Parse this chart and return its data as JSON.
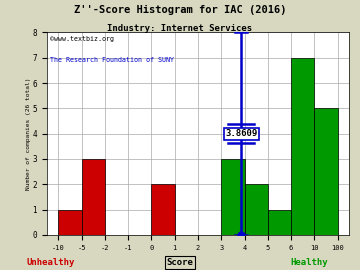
{
  "title": "Z''-Score Histogram for IAC (2016)",
  "subtitle": "Industry: Internet Services",
  "watermark1": "©www.textbiz.org",
  "watermark2": "The Research Foundation of SUNY",
  "xlabel": "Score",
  "ylabel": "Number of companies (26 total)",
  "bin_edges": [
    -10,
    -5,
    -2,
    -1,
    0,
    1,
    2,
    3,
    4,
    5,
    6,
    10,
    100
  ],
  "counts": [
    1,
    3,
    0,
    0,
    2,
    0,
    0,
    3,
    2,
    1,
    7,
    5
  ],
  "bar_colors": [
    "#cc0000",
    "#cc0000",
    "#cc0000",
    "#cc0000",
    "#cc0000",
    "#cc0000",
    "#cc0000",
    "#009900",
    "#009900",
    "#009900",
    "#009900",
    "#009900"
  ],
  "zscore_line": 3.8609,
  "zscore_label": "3.8609",
  "line_color": "#0000cc",
  "unhealthy_label": "Unhealthy",
  "healthy_label": "Healthy",
  "unhealthy_color": "#cc0000",
  "healthy_color": "#009900",
  "title_color": "#000000",
  "subtitle_color": "#000000",
  "watermark1_color": "#000000",
  "watermark2_color": "#0000cc",
  "plot_bg_color": "#ffffff",
  "fig_bg_color": "#d8d8c0",
  "ylim": [
    0,
    8
  ],
  "yticks": [
    0,
    1,
    2,
    3,
    4,
    5,
    6,
    7,
    8
  ],
  "xtick_labels": [
    "-10",
    "-5",
    "-2",
    "-1",
    "0",
    "1",
    "2",
    "3",
    "4",
    "5",
    "6",
    "10",
    "100"
  ],
  "xtick_positions": [
    -10,
    -5,
    -2,
    -1,
    0,
    1,
    2,
    3,
    4,
    5,
    6,
    10,
    100
  ]
}
